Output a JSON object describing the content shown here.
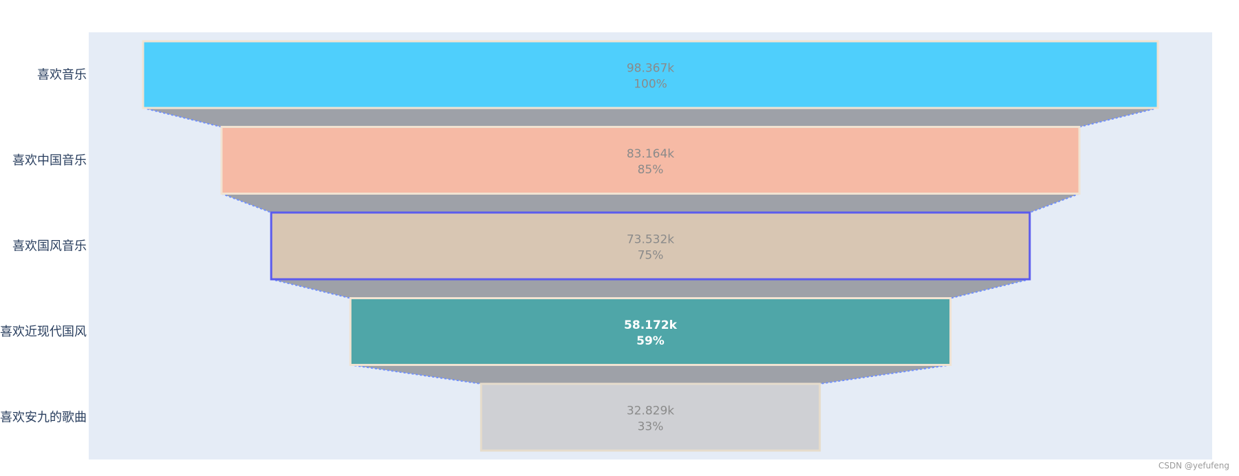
{
  "chart_data": {
    "type": "funnel",
    "stages": [
      "喜欢音乐",
      "喜欢中国音乐",
      "喜欢国风音乐",
      "喜欢近现代国风",
      "喜欢安九的歌曲"
    ],
    "values": [
      98367,
      83164,
      73532,
      58172,
      32829
    ],
    "value_labels": [
      "98.367k",
      "83.164k",
      "73.532k",
      "58.172k",
      "32.829k"
    ],
    "percent_labels": [
      "100%",
      "85%",
      "75%",
      "59%",
      "33%"
    ],
    "colors": {
      "stages": [
        "#4fcffc",
        "#f6baa5",
        "#d8c6b3",
        "#4fa6a8",
        "#cfd0d4"
      ],
      "stage_outlines": [
        "#f1e3d2",
        "#f1e3d2",
        "#5b5bee",
        "#f1e3d2",
        "#e6dccb"
      ],
      "label_text": [
        "#8a8a8a",
        "#8a8a8a",
        "#8a8a8a",
        "#ffffff",
        "#8a8a8a"
      ],
      "connector_fill": "#9ea1a8",
      "connector_line": "#6f8fff",
      "plot_background": "#e5ecf6"
    }
  },
  "watermark": "CSDN @yefufeng"
}
